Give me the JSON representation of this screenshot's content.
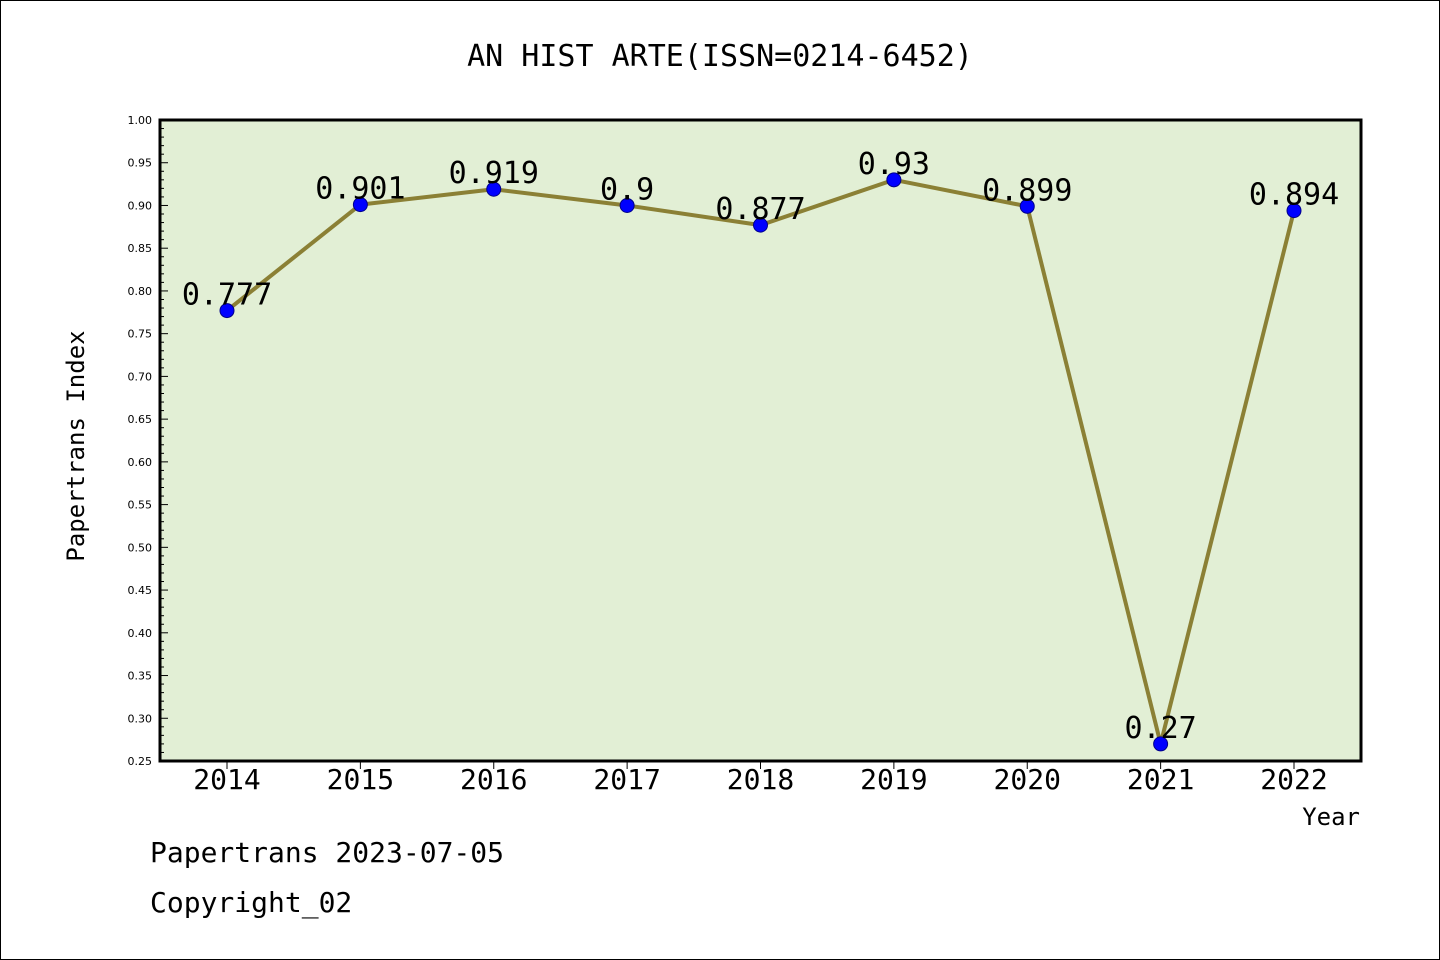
{
  "chart_data": {
    "type": "line",
    "title": "AN HIST ARTE(ISSN=0214-6452)",
    "xlabel": "Year",
    "ylabel": "Papertrans Index",
    "categories": [
      "2014",
      "2015",
      "2016",
      "2017",
      "2018",
      "2019",
      "2020",
      "2021",
      "2022"
    ],
    "values": [
      0.777,
      0.901,
      0.919,
      0.9,
      0.877,
      0.93,
      0.899,
      0.27,
      0.894
    ],
    "value_labels": [
      "0.777",
      "0.901",
      "0.919",
      "0.9",
      "0.877",
      "0.93",
      "0.899",
      "0.27",
      "0.894"
    ],
    "ylim": [
      0.25,
      1.0
    ],
    "yticks": [
      "0.25",
      "0.30",
      "0.35",
      "0.40",
      "0.45",
      "0.50",
      "0.55",
      "0.60",
      "0.65",
      "0.70",
      "0.75",
      "0.80",
      "0.85",
      "0.90",
      "0.95",
      "1.00"
    ],
    "grid": false,
    "colors": {
      "plot_background": "#e2efd5",
      "line": "#8b8035",
      "marker": "#0000ff"
    }
  },
  "footer": {
    "date_line": "Papertrans 2023-07-05",
    "copyright": "Copyright_02"
  }
}
